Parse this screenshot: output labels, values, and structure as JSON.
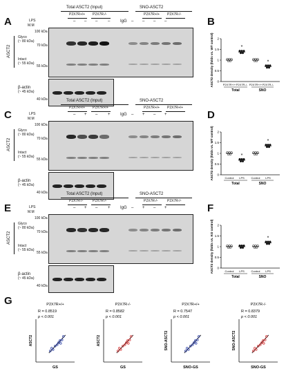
{
  "rows": [
    {
      "panel": "A",
      "total_header": "Total ASCT2 (Input)",
      "sno_header": "SNO-ASCT2",
      "genotype_left": "P2X7R+/+",
      "genotype_right": "P2X7R-/-",
      "lps_row": [
        "",
        "–",
        "–",
        "–",
        "–",
        "IgG",
        "–",
        "–",
        "–",
        "–"
      ]
    },
    {
      "panel": "C",
      "total_header": "Total ASCT2 (Input)",
      "sno_header": "SNO-ASCT2",
      "genotype_left": "P2X7R+/+",
      "genotype_right": "P2X7R+/+",
      "lps_row": [
        "",
        "–",
        "+",
        "–",
        "+",
        "IgG",
        "–",
        "+",
        "–",
        "+"
      ]
    },
    {
      "panel": "E",
      "total_header": "Total ASCT2 (Input)",
      "sno_header": "SNO-ASCT2",
      "genotype_left": "P2X7R-/-",
      "genotype_right": "P2X7R-/-",
      "lps_row": [
        "",
        "–",
        "+",
        "–",
        "+",
        "IgG",
        "–",
        "+",
        "–",
        "+"
      ]
    }
  ],
  "common": {
    "lps": "LPS",
    "mm": "M.M",
    "asct2": "ASCT2",
    "glyco": "Glyco",
    "glyco_kda": "(~ 80 kDa)",
    "intact": "Intact",
    "intact_kda": "(~ 55 kDa)",
    "bactin": "β-actin",
    "bactin_kda": "(~ 45 kDa)",
    "kda100": "100 kDa",
    "kda70": "70 kDa",
    "kda55": "55 kDa",
    "kda40": "40 kDa"
  },
  "chart_data": [
    {
      "panel": "B",
      "type": "scatter",
      "ylabel": "ASCT2 density\n(folds vs. WT control)",
      "ylim": [
        0,
        2
      ],
      "yticks": [
        "0",
        "0.5",
        "1",
        "1.5",
        "2"
      ],
      "categories": [
        "P2X7R+/+",
        "P2X7R-/-",
        "P2X7R+/+",
        "P2X7R-/-"
      ],
      "groups": [
        "Total",
        "SNO"
      ],
      "means": [
        1.0,
        1.38,
        1.0,
        0.7
      ],
      "star": [
        false,
        true,
        false,
        true
      ]
    },
    {
      "panel": "D",
      "type": "scatter",
      "ylabel": "ASCT2 density\n(folds vs. WT control)",
      "ylim": [
        0,
        2
      ],
      "yticks": [
        "0",
        "0.5",
        "1",
        "1.5",
        "2"
      ],
      "categories": [
        "Control",
        "LPS",
        "Control",
        "LPS"
      ],
      "groups": [
        "Total",
        "SNO"
      ],
      "means": [
        1.0,
        0.68,
        1.0,
        1.35
      ],
      "star": [
        false,
        true,
        false,
        true
      ]
    },
    {
      "panel": "F",
      "type": "scatter",
      "ylabel": "ASCT2 density\n(folds vs. KO control)",
      "ylim": [
        0,
        2
      ],
      "yticks": [
        "0",
        "0.5",
        "1",
        "1.5",
        "2"
      ],
      "categories": [
        "Control",
        "LPS",
        "Control",
        "LPS"
      ],
      "groups": [
        "Total",
        "SNO"
      ],
      "means": [
        1.0,
        1.0,
        1.0,
        1.18
      ],
      "star": [
        false,
        false,
        false,
        true
      ]
    }
  ],
  "correlations": [
    {
      "title": "P2X7R+/+",
      "r": "R = 0.8519",
      "p": "p < 0.001",
      "xlabel": "GS",
      "ylabel": "ASCT2",
      "color": "#1a2f9c"
    },
    {
      "title": "P2X7R-/-",
      "r": "R = 0.8582",
      "p": "p < 0.001",
      "xlabel": "GS",
      "ylabel": "ASCT2",
      "color": "#cc1f1f"
    },
    {
      "title": "P2X7R+/+",
      "r": "R = 0.7547",
      "p": "p < 0.001",
      "xlabel": "SNO-GS",
      "ylabel": "SNO-ASCT2",
      "color": "#1a2f9c"
    },
    {
      "title": "P2X7R-/-",
      "r": "R = 0.8379",
      "p": "p < 0.001",
      "xlabel": "SNO-GS",
      "ylabel": "SNO-ASCT2",
      "color": "#cc1f1f"
    }
  ],
  "panel_g": "G"
}
